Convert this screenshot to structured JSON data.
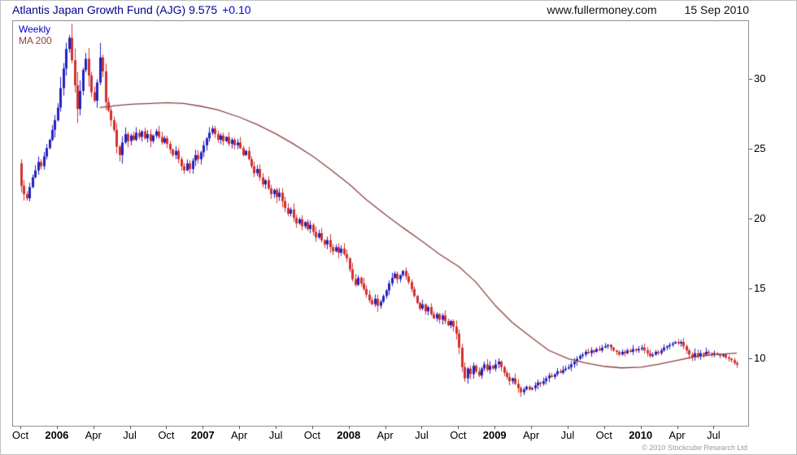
{
  "header": {
    "title": "Atlantis Japan Growth Fund (AJG) 9.575",
    "change": "+0.10",
    "website": "www.fullermoney.com",
    "date": "15 Sep 2010"
  },
  "footer": {
    "copyright": "© 2010 Stockcube Research Ltd"
  },
  "chart_data": {
    "type": "candlestick",
    "title": "Atlantis Japan Growth Fund (AJG)",
    "last_price": 9.575,
    "change": 0.1,
    "frequency_label": "Weekly",
    "ma_label": "MA 200",
    "legend_position": "top-left",
    "grid": false,
    "y_ticks": [
      10,
      15,
      20,
      25,
      30
    ],
    "ylim": [
      5.2,
      34.2
    ],
    "x_ticks": [
      {
        "label": "Oct",
        "week": 0,
        "bold": false
      },
      {
        "label": "2006",
        "week": 13,
        "bold": true
      },
      {
        "label": "Apr",
        "week": 26,
        "bold": false
      },
      {
        "label": "Jul",
        "week": 39,
        "bold": false
      },
      {
        "label": "Oct",
        "week": 52,
        "bold": false
      },
      {
        "label": "2007",
        "week": 65,
        "bold": true
      },
      {
        "label": "Apr",
        "week": 78,
        "bold": false
      },
      {
        "label": "Jul",
        "week": 91,
        "bold": false
      },
      {
        "label": "Oct",
        "week": 104,
        "bold": false
      },
      {
        "label": "2008",
        "week": 117,
        "bold": true
      },
      {
        "label": "Apr",
        "week": 130,
        "bold": false
      },
      {
        "label": "Jul",
        "week": 143,
        "bold": false
      },
      {
        "label": "Oct",
        "week": 156,
        "bold": false
      },
      {
        "label": "2009",
        "week": 169,
        "bold": true
      },
      {
        "label": "Apr",
        "week": 182,
        "bold": false
      },
      {
        "label": "Jul",
        "week": 195,
        "bold": false
      },
      {
        "label": "Oct",
        "week": 208,
        "bold": false
      },
      {
        "label": "2010",
        "week": 221,
        "bold": true
      },
      {
        "label": "Apr",
        "week": 234,
        "bold": false
      },
      {
        "label": "Jul",
        "week": 247,
        "bold": false
      }
    ],
    "first_open": 24.0,
    "weekly_closes": [
      22.4,
      21.8,
      21.5,
      22.3,
      23.0,
      23.5,
      24.1,
      23.8,
      24.5,
      25.1,
      25.7,
      26.4,
      27.1,
      28.0,
      29.4,
      30.8,
      32.2,
      33.0,
      31.4,
      29.6,
      27.9,
      29.2,
      30.7,
      31.5,
      30.3,
      29.1,
      28.5,
      29.8,
      31.6,
      30.6,
      28.4,
      27.8,
      27.1,
      26.4,
      25.2,
      24.6,
      25.5,
      26.1,
      25.6,
      26.0,
      25.7,
      26.2,
      25.9,
      26.3,
      25.8,
      26.1,
      25.6,
      26.0,
      26.3,
      25.9,
      25.5,
      25.8,
      25.4,
      25.0,
      24.6,
      24.9,
      24.3,
      23.8,
      23.5,
      24.0,
      23.6,
      24.2,
      24.6,
      24.3,
      24.8,
      25.3,
      25.8,
      26.2,
      26.5,
      26.1,
      25.7,
      26.0,
      25.6,
      25.9,
      25.4,
      25.7,
      25.3,
      25.5,
      25.1,
      24.6,
      24.9,
      24.3,
      23.8,
      23.3,
      23.6,
      23.0,
      22.5,
      22.8,
      22.2,
      21.8,
      22.1,
      21.6,
      21.9,
      21.3,
      20.8,
      20.4,
      20.7,
      20.1,
      19.7,
      20.0,
      19.5,
      19.8,
      19.3,
      19.6,
      19.1,
      18.7,
      19.0,
      18.5,
      18.2,
      18.5,
      18.0,
      17.7,
      18.0,
      17.6,
      17.9,
      17.5,
      17.2,
      16.4,
      15.7,
      15.3,
      15.8,
      15.4,
      15.0,
      14.6,
      14.2,
      13.9,
      14.3,
      13.8,
      14.1,
      14.5,
      14.9,
      15.4,
      15.8,
      16.1,
      15.7,
      16.0,
      16.3,
      15.9,
      15.5,
      15.0,
      14.5,
      14.0,
      13.6,
      13.9,
      13.4,
      13.7,
      13.2,
      12.9,
      13.2,
      12.8,
      13.1,
      12.7,
      12.4,
      12.7,
      12.3,
      11.8,
      10.8,
      9.4,
      8.6,
      9.3,
      8.9,
      9.5,
      9.1,
      8.8,
      9.3,
      9.6,
      9.2,
      9.5,
      9.3,
      9.6,
      9.8,
      9.4,
      9.0,
      8.7,
      8.4,
      8.6,
      8.2,
      7.9,
      7.6,
      7.8,
      8.0,
      7.8,
      7.9,
      8.1,
      8.3,
      8.2,
      8.4,
      8.6,
      8.8,
      8.7,
      8.9,
      9.1,
      9.0,
      9.2,
      9.3,
      9.4,
      9.6,
      9.8,
      10.0,
      10.2,
      10.3,
      10.5,
      10.4,
      10.6,
      10.5,
      10.7,
      10.6,
      10.8,
      10.9,
      11.0,
      10.8,
      10.6,
      10.5,
      10.3,
      10.5,
      10.4,
      10.6,
      10.5,
      10.7,
      10.6,
      10.7,
      10.8,
      10.6,
      10.4,
      10.2,
      10.3,
      10.5,
      10.4,
      10.6,
      10.8,
      10.9,
      11.0,
      11.1,
      11.2,
      11.1,
      11.2,
      10.9,
      10.6,
      10.3,
      10.1,
      10.4,
      10.2,
      10.4,
      10.3,
      10.5,
      10.4,
      10.3,
      10.4,
      10.3,
      10.2,
      10.3,
      10.1,
      10.0,
      9.9,
      9.7,
      9.575
    ],
    "ma200_points": [
      [
        28,
        28.0
      ],
      [
        34,
        28.15
      ],
      [
        40,
        28.25
      ],
      [
        46,
        28.3
      ],
      [
        52,
        28.35
      ],
      [
        58,
        28.3
      ],
      [
        64,
        28.1
      ],
      [
        70,
        27.85
      ],
      [
        78,
        27.3
      ],
      [
        84,
        26.8
      ],
      [
        91,
        26.1
      ],
      [
        97,
        25.4
      ],
      [
        104,
        24.5
      ],
      [
        110,
        23.6
      ],
      [
        117,
        22.5
      ],
      [
        123,
        21.4
      ],
      [
        130,
        20.3
      ],
      [
        136,
        19.4
      ],
      [
        143,
        18.4
      ],
      [
        149,
        17.5
      ],
      [
        156,
        16.6
      ],
      [
        162,
        15.5
      ],
      [
        169,
        13.8
      ],
      [
        175,
        12.6
      ],
      [
        182,
        11.5
      ],
      [
        188,
        10.6
      ],
      [
        195,
        10.0
      ],
      [
        201,
        9.7
      ],
      [
        208,
        9.45
      ],
      [
        214,
        9.35
      ],
      [
        221,
        9.4
      ],
      [
        227,
        9.6
      ],
      [
        234,
        9.9
      ],
      [
        240,
        10.15
      ],
      [
        247,
        10.3
      ],
      [
        255,
        10.4
      ]
    ],
    "colors": {
      "up": "#2222c0",
      "down": "#d03030",
      "ma": "#8b4040",
      "frame": "#909090",
      "weekly_label": "#0000cd"
    }
  }
}
